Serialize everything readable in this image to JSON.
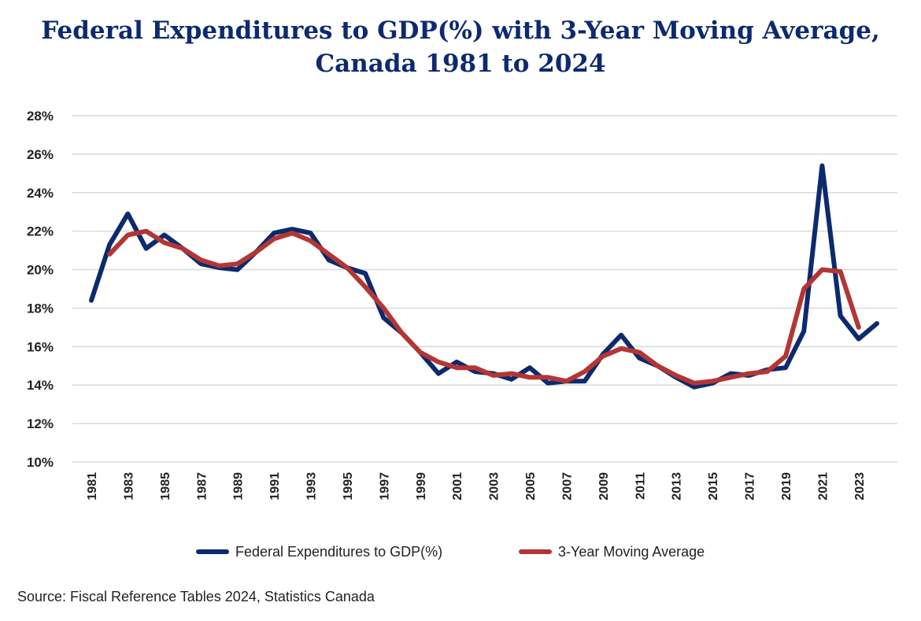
{
  "chart_data": {
    "type": "line",
    "title_line1": "Federal Expenditures to GDP(%) with 3-Year Moving Average,",
    "title_line2": "Canada 1981 to 2024",
    "ylim": [
      10,
      28
    ],
    "y_ticks": [
      "10%",
      "12%",
      "14%",
      "16%",
      "18%",
      "20%",
      "22%",
      "24%",
      "26%",
      "28%"
    ],
    "y_tick_values": [
      10,
      12,
      14,
      16,
      18,
      20,
      22,
      24,
      26,
      28
    ],
    "x_tick_labels": [
      "1981",
      "1983",
      "1985",
      "1987",
      "1989",
      "1991",
      "1993",
      "1995",
      "1997",
      "1999",
      "2001",
      "2003",
      "2005",
      "2007",
      "2009",
      "2011",
      "2013",
      "2015",
      "2017",
      "2019",
      "2021",
      "2023"
    ],
    "grid": "horizontal",
    "legend_position": "bottom",
    "series": [
      {
        "name": "Federal Expenditures to GDP(%)",
        "color": "#0d2a6e",
        "x": [
          1981,
          1982,
          1983,
          1984,
          1985,
          1986,
          1987,
          1988,
          1989,
          1990,
          1991,
          1992,
          1993,
          1994,
          1995,
          1996,
          1997,
          1998,
          1999,
          2000,
          2001,
          2002,
          2003,
          2004,
          2005,
          2006,
          2007,
          2008,
          2009,
          2010,
          2011,
          2012,
          2013,
          2014,
          2015,
          2016,
          2017,
          2018,
          2019,
          2020,
          2021,
          2022,
          2023,
          2024
        ],
        "values": [
          18.4,
          21.3,
          22.9,
          21.1,
          21.8,
          21.1,
          20.3,
          20.1,
          20.0,
          20.9,
          21.9,
          22.1,
          21.9,
          20.5,
          20.1,
          19.8,
          17.5,
          16.7,
          15.7,
          14.6,
          15.2,
          14.7,
          14.6,
          14.3,
          14.9,
          14.1,
          14.2,
          14.2,
          15.6,
          16.6,
          15.4,
          15.0,
          14.4,
          13.9,
          14.1,
          14.6,
          14.5,
          14.8,
          14.9,
          16.8,
          25.4,
          17.6,
          16.4,
          17.2
        ]
      },
      {
        "name": "3-Year Moving Average",
        "color": "#b33634",
        "x": [
          1982,
          1983,
          1984,
          1985,
          1986,
          1987,
          1988,
          1989,
          1990,
          1991,
          1992,
          1993,
          1994,
          1995,
          1996,
          1997,
          1998,
          1999,
          2000,
          2001,
          2002,
          2003,
          2004,
          2005,
          2006,
          2007,
          2008,
          2009,
          2010,
          2011,
          2012,
          2013,
          2014,
          2015,
          2016,
          2017,
          2018,
          2019,
          2020,
          2021,
          2022,
          2023
        ],
        "values": [
          20.8,
          21.8,
          22.0,
          21.4,
          21.1,
          20.5,
          20.2,
          20.3,
          20.9,
          21.6,
          21.9,
          21.5,
          20.8,
          20.1,
          19.1,
          18.0,
          16.7,
          15.7,
          15.2,
          14.9,
          14.9,
          14.5,
          14.6,
          14.4,
          14.4,
          14.2,
          14.7,
          15.5,
          15.9,
          15.7,
          15.0,
          14.5,
          14.1,
          14.2,
          14.4,
          14.6,
          14.7,
          15.5,
          19.0,
          20.0,
          19.9,
          17.0
        ]
      }
    ]
  },
  "source_text": "Source: Fiscal Reference Tables 2024, Statistics Canada"
}
